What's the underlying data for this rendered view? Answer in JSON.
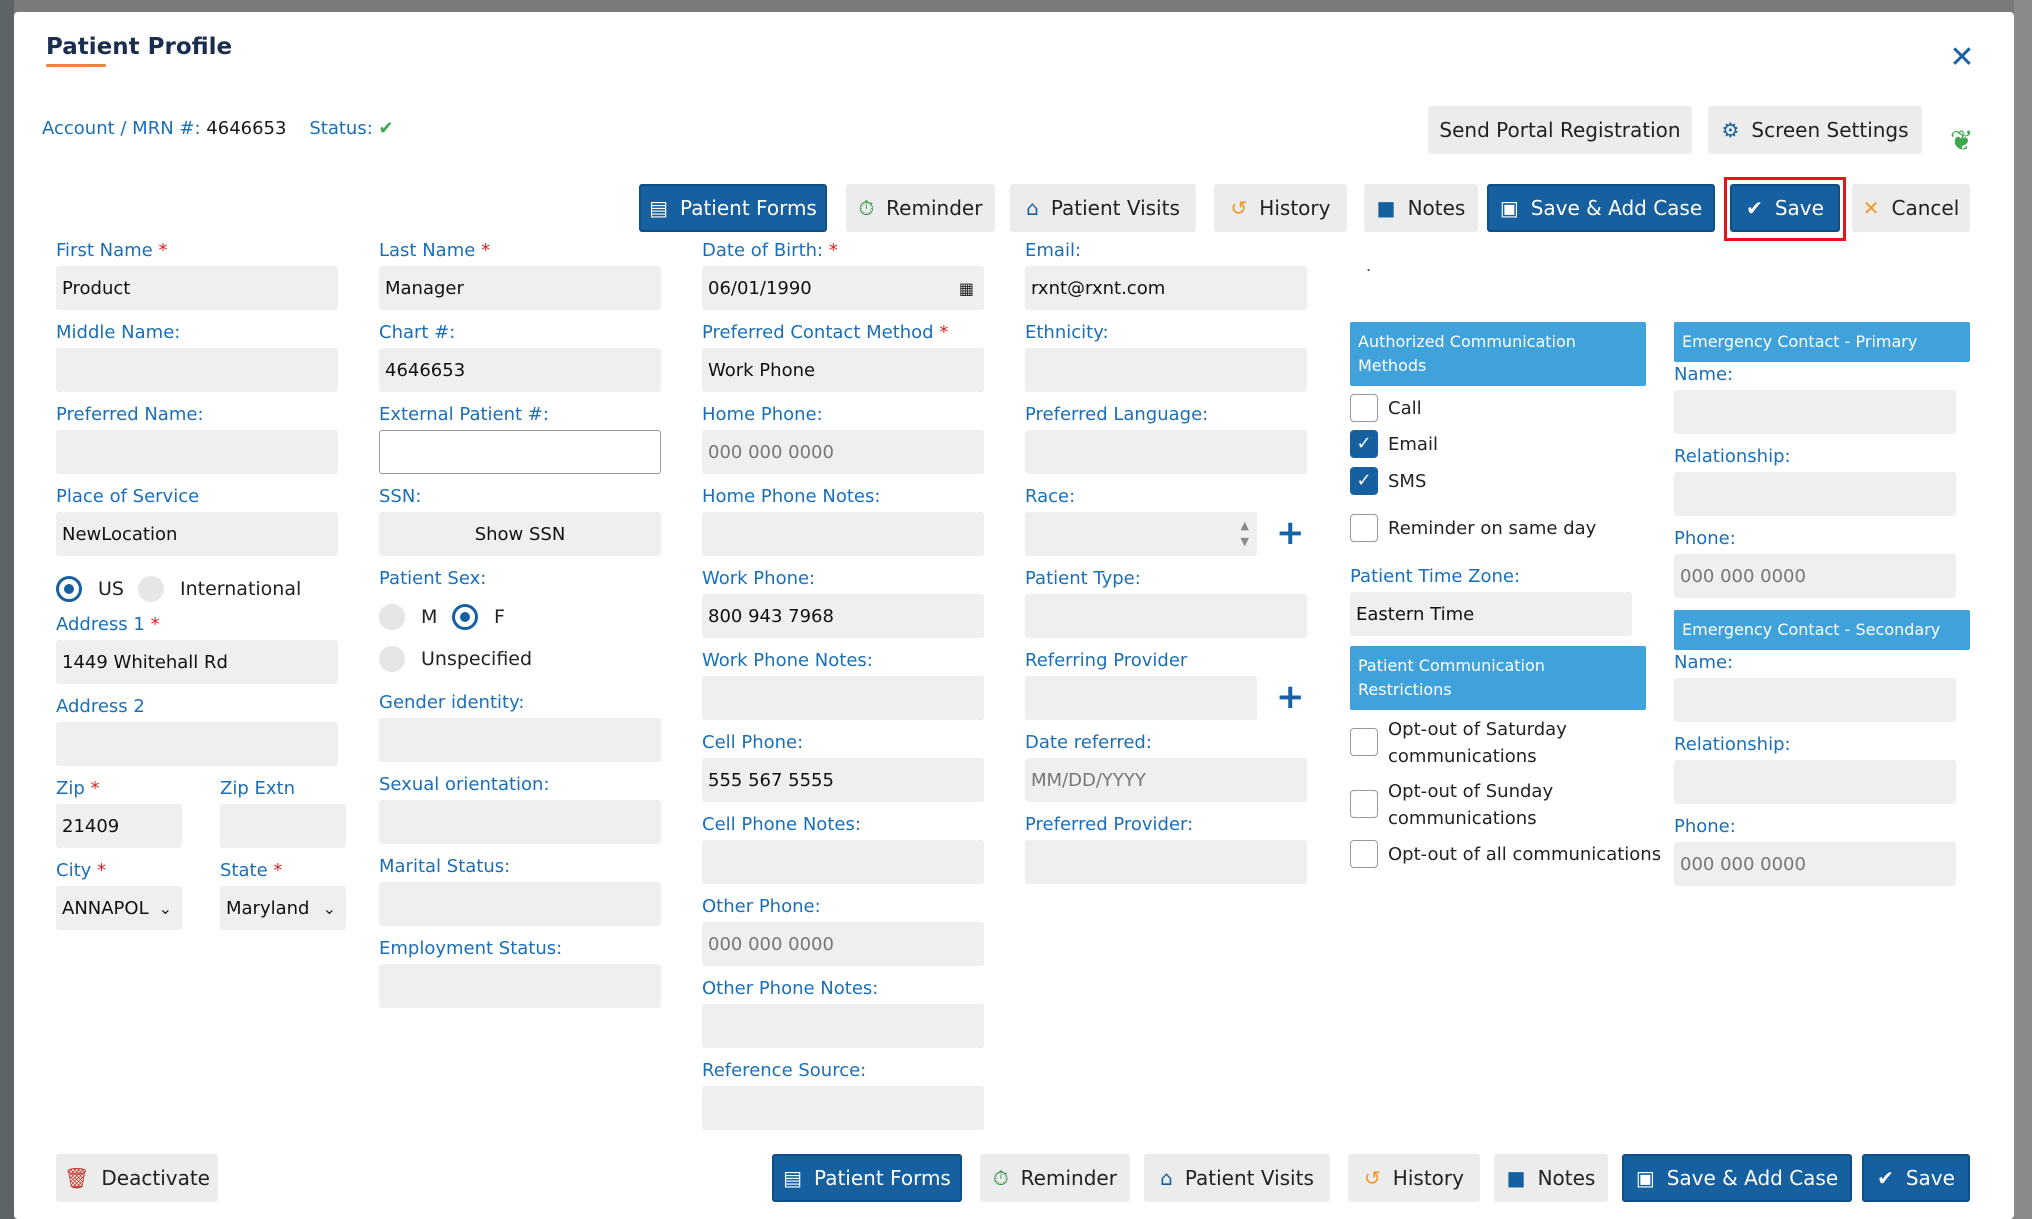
{
  "modal": {
    "title": "Patient Profile",
    "close": "✕"
  },
  "account": {
    "label": "Account / MRN #:",
    "value": "4646653",
    "status_label": "Status:",
    "status_icon": "✔"
  },
  "top_buttons": {
    "portal": "Send Portal Registration",
    "screen_settings": "Screen Settings"
  },
  "toolbar": {
    "patient_forms": "Patient Forms",
    "reminder": "Reminder",
    "patient_visits": "Patient Visits",
    "history": "History",
    "notes": "Notes",
    "save_add_case": "Save & Add Case",
    "save": "Save",
    "cancel": "Cancel"
  },
  "col1": {
    "first_name_label": "First Name",
    "first_name": "Product",
    "middle_name_label": "Middle Name:",
    "middle_name": "",
    "preferred_name_label": "Preferred Name:",
    "preferred_name": "",
    "place_of_service_label": "Place of Service",
    "place_of_service": "NewLocation",
    "us": "US",
    "international": "International",
    "address1_label": "Address 1",
    "address1": "1449 Whitehall Rd",
    "address2_label": "Address 2",
    "address2": "",
    "zip_label": "Zip",
    "zip": "21409",
    "zip_extn_label": "Zip Extn",
    "zip_extn": "",
    "city_label": "City",
    "city": "ANNAPOL",
    "state_label": "State",
    "state": "Maryland"
  },
  "col2": {
    "last_name_label": "Last Name",
    "last_name": "Manager",
    "chart_label": "Chart #:",
    "chart": "4646653",
    "external_label": "External Patient #:",
    "external": "",
    "ssn_label": "SSN:",
    "ssn_button": "Show SSN",
    "sex_label": "Patient Sex:",
    "sex_m": "M",
    "sex_f": "F",
    "sex_unspecified": "Unspecified",
    "gender_identity_label": "Gender identity:",
    "sexual_orientation_label": "Sexual orientation:",
    "marital_status_label": "Marital Status:",
    "employment_status_label": "Employment Status:"
  },
  "col3": {
    "dob_label": "Date of Birth:",
    "dob": "06/01/1990",
    "contact_method_label": "Preferred Contact Method",
    "contact_method": "Work Phone",
    "home_phone_label": "Home Phone:",
    "home_phone_ph": "000 000 0000",
    "home_phone_notes_label": "Home Phone Notes:",
    "work_phone_label": "Work Phone:",
    "work_phone": "800 943 7968",
    "work_phone_notes_label": "Work Phone Notes:",
    "cell_phone_label": "Cell Phone:",
    "cell_phone": "555 567 5555",
    "cell_phone_notes_label": "Cell Phone Notes:",
    "other_phone_label": "Other Phone:",
    "other_phone_ph": "000 000 0000",
    "other_phone_notes_label": "Other Phone Notes:",
    "reference_source_label": "Reference Source:"
  },
  "col4": {
    "email_label": "Email:",
    "email": "rxnt@rxnt.com",
    "ethnicity_label": "Ethnicity:",
    "preferred_language_label": "Preferred Language:",
    "race_label": "Race:",
    "patient_type_label": "Patient Type:",
    "referring_provider_label": "Referring Provider",
    "date_referred_label": "Date referred:",
    "date_referred_ph": "MM/DD/YYYY",
    "preferred_provider_label": "Preferred Provider:"
  },
  "col5": {
    "dot": ".",
    "auth_header": "Authorized Communication Methods",
    "call": "Call",
    "email": "Email",
    "sms": "SMS",
    "same_day": "Reminder on same day",
    "tz_label": "Patient Time Zone:",
    "tz": "Eastern Time",
    "restrictions_header": "Patient Communication Restrictions",
    "opt_sat": "Opt-out of Saturday communications",
    "opt_sun": "Opt-out of Sunday communications",
    "opt_all": "Opt-out of all communications"
  },
  "col6": {
    "primary_header": "Emergency Contact - Primary",
    "secondary_header": "Emergency Contact - Secondary",
    "name_label": "Name:",
    "relationship_label": "Relationship:",
    "phone_label": "Phone:",
    "phone_ph": "000 000 0000"
  },
  "footer": {
    "deactivate": "Deactivate"
  },
  "colors": {
    "primary": "#16609f",
    "label": "#1a6fb7",
    "section": "#3fa2da",
    "required": "#d92323",
    "highlight": "#e3151a"
  }
}
